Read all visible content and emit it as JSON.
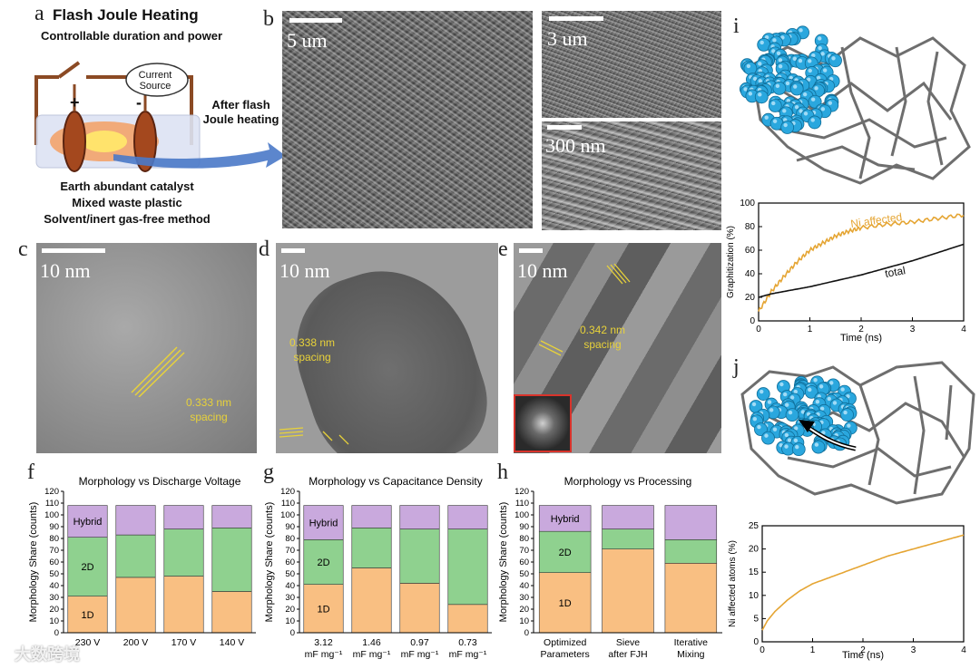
{
  "labels": {
    "a": "a",
    "b": "b",
    "c": "c",
    "d": "d",
    "e": "e",
    "f": "f",
    "g": "g",
    "h": "h",
    "i": "i",
    "j": "j"
  },
  "schematic": {
    "title": "Flash Joule Heating",
    "subtitle": "Controllable duration and power",
    "current_source": "Current\nSource",
    "plus": "+",
    "minus": "-",
    "after": "After flash\nJoule heating",
    "line1": "Earth abundant catalyst",
    "line2": "Mixed waste plastic",
    "line3": "Solvent/inert gas-free method"
  },
  "sem": {
    "main_scale": "5 um",
    "top_right_scale": "3 um",
    "bottom_right_scale": "300 nm"
  },
  "tem": {
    "c": {
      "scale": "10 nm",
      "spacing": "0.333 nm\nspacing"
    },
    "d": {
      "scale": "10 nm",
      "spacing": "0.338 nm\nspacing"
    },
    "e": {
      "scale": "10 nm",
      "spacing": "0.342 nm\nspacing"
    }
  },
  "colors": {
    "oneD": "#f9bf82",
    "twoD": "#8fd18f",
    "hybrid": "#c9a9dd",
    "orange_line": "#e5a533",
    "black_line": "#111111",
    "atom": "#2aa7de"
  },
  "chart_data": [
    {
      "type": "bar",
      "stacked": true,
      "panel": "f",
      "title": "Morphology vs Discharge Voltage",
      "ylabel": "Morphology Share (counts)",
      "ylim": [
        0,
        120
      ],
      "yticks": [
        0,
        10,
        20,
        30,
        40,
        50,
        60,
        70,
        80,
        90,
        100,
        110,
        120
      ],
      "categories": [
        "230 V",
        "200 V",
        "170 V",
        "140 V"
      ],
      "series": [
        {
          "name": "1D",
          "values": [
            31,
            47,
            48,
            35
          ]
        },
        {
          "name": "2D",
          "values": [
            50,
            36,
            40,
            54
          ]
        },
        {
          "name": "Hybrid",
          "values": [
            27,
            25,
            20,
            19
          ]
        }
      ]
    },
    {
      "type": "bar",
      "stacked": true,
      "panel": "g",
      "title": "Morphology vs Capacitance Density",
      "ylabel": "Morphology Share (counts)",
      "ylim": [
        0,
        120
      ],
      "yticks": [
        0,
        10,
        20,
        30,
        40,
        50,
        60,
        70,
        80,
        90,
        100,
        110,
        120
      ],
      "categories": [
        "3.12\nmF mg⁻¹",
        "1.46\nmF mg⁻¹",
        "0.97\nmF mg⁻¹",
        "0.73\nmF mg⁻¹"
      ],
      "series": [
        {
          "name": "1D",
          "values": [
            41,
            55,
            42,
            24
          ]
        },
        {
          "name": "2D",
          "values": [
            38,
            34,
            46,
            64
          ]
        },
        {
          "name": "Hybrid",
          "values": [
            29,
            19,
            20,
            20
          ]
        }
      ]
    },
    {
      "type": "bar",
      "stacked": true,
      "panel": "h",
      "title": "Morphology vs Processing",
      "ylabel": "Morphology Share (counts)",
      "ylim": [
        0,
        120
      ],
      "yticks": [
        0,
        10,
        20,
        30,
        40,
        50,
        60,
        70,
        80,
        90,
        100,
        110,
        120
      ],
      "categories": [
        "Optimized\nParameters",
        "Sieve\nafter FJH",
        "Iterative\nMixing"
      ],
      "series": [
        {
          "name": "1D",
          "values": [
            51,
            71,
            59
          ]
        },
        {
          "name": "2D",
          "values": [
            35,
            17,
            20
          ]
        },
        {
          "name": "Hybrid",
          "values": [
            22,
            20,
            29
          ]
        }
      ]
    },
    {
      "type": "line",
      "panel": "i",
      "xlabel": "Time (ns)",
      "ylabel": "Graphitization (%)",
      "xlim": [
        0,
        4
      ],
      "ylim": [
        0,
        100
      ],
      "xticks": [
        0,
        1,
        2,
        3,
        4
      ],
      "yticks": [
        0,
        20,
        40,
        60,
        80,
        100
      ],
      "series": [
        {
          "name": "Ni affected",
          "x": [
            0,
            0.25,
            0.5,
            0.75,
            1,
            1.25,
            1.5,
            1.75,
            2,
            2.5,
            3,
            3.5,
            4
          ],
          "y": [
            8,
            25,
            38,
            50,
            60,
            66,
            72,
            76,
            79,
            82,
            84,
            87,
            90
          ]
        },
        {
          "name": "total",
          "x": [
            0,
            0.25,
            0.5,
            0.75,
            1,
            1.5,
            2,
            2.5,
            3,
            3.5,
            4
          ],
          "y": [
            20,
            23,
            25,
            27,
            29,
            34,
            39,
            45,
            51,
            58,
            65
          ]
        }
      ]
    },
    {
      "type": "line",
      "panel": "j",
      "xlabel": "Time (ns)",
      "ylabel": "Ni affected atoms (%)",
      "xlim": [
        0,
        4
      ],
      "ylim": [
        0,
        25
      ],
      "xticks": [
        0,
        1,
        2,
        3,
        4
      ],
      "yticks": [
        0,
        5,
        10,
        15,
        20,
        25
      ],
      "series": [
        {
          "name": "Ni affected atoms",
          "x": [
            0,
            0.1,
            0.25,
            0.5,
            0.75,
            1,
            1.5,
            2,
            2.5,
            3,
            3.5,
            4
          ],
          "y": [
            2.5,
            4.5,
            6.5,
            9,
            11,
            12.5,
            14.5,
            16.5,
            18.5,
            20,
            21.5,
            23
          ]
        }
      ]
    }
  ],
  "watermark": "大数跨境"
}
